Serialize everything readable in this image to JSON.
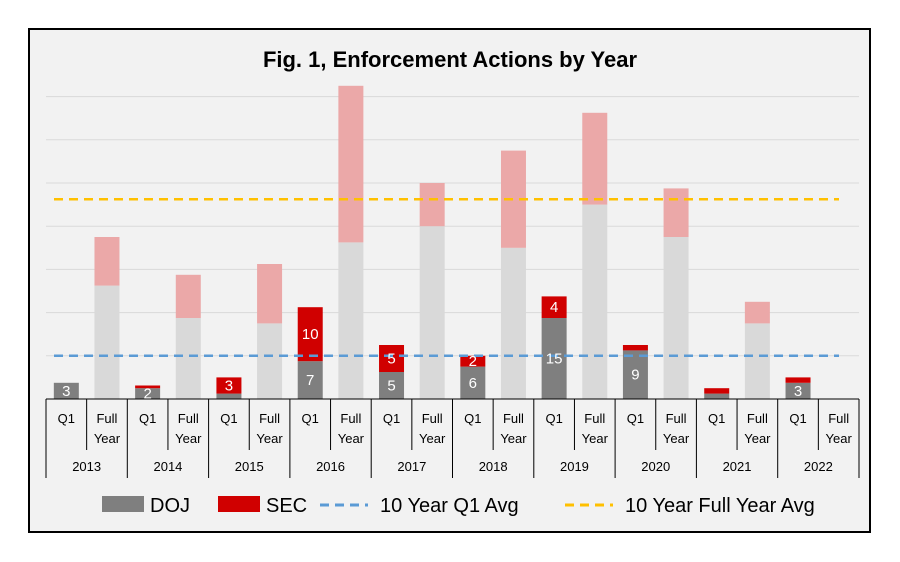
{
  "chart_data": {
    "type": "bar",
    "stacked": true,
    "title": "Fig. 1, Enforcement Actions by Year",
    "years": [
      "2013",
      "2014",
      "2015",
      "2016",
      "2017",
      "2018",
      "2019",
      "2020",
      "2021",
      "2022"
    ],
    "periods": [
      "Q1",
      "Full Year"
    ],
    "categories": [
      "2013 Q1",
      "2013 Full Year",
      "2014 Q1",
      "2014 Full Year",
      "2015 Q1",
      "2015 Full Year",
      "2016 Q1",
      "2016 Full Year",
      "2017 Q1",
      "2017 Full Year",
      "2018 Q1",
      "2018 Full Year",
      "2019 Q1",
      "2019 Full Year",
      "2020 Q1",
      "2020 Full Year",
      "2021 Q1",
      "2021 Full Year",
      "2022 Q1",
      "2022 Full Year"
    ],
    "series": [
      {
        "name": "DOJ",
        "values": [
          3,
          21,
          2,
          15,
          1,
          14,
          7,
          29,
          5,
          32,
          6,
          28,
          15,
          36,
          9,
          30,
          1,
          14,
          3,
          null
        ],
        "labels": [
          "3",
          null,
          "2",
          null,
          null,
          null,
          "7",
          null,
          "5",
          null,
          "6",
          null,
          "15",
          null,
          "9",
          null,
          null,
          null,
          "3",
          null
        ]
      },
      {
        "name": "SEC",
        "values": [
          0,
          9,
          0.5,
          8,
          3,
          11,
          10,
          29,
          5,
          8,
          2,
          18,
          4,
          17,
          1,
          9,
          1,
          4,
          1,
          null
        ],
        "labels": [
          null,
          null,
          null,
          null,
          "3",
          null,
          "10",
          null,
          "5",
          null,
          "2",
          null,
          "4",
          null,
          null,
          null,
          null,
          null,
          null,
          null
        ]
      }
    ],
    "reference_lines": [
      {
        "name": "10 Year Q1 Avg",
        "value": 8,
        "color": "#5b9bd5",
        "style": "dashed"
      },
      {
        "name": "10 Year Full Year Avg",
        "value": 37,
        "color": "#ffc000",
        "style": "dashed"
      }
    ],
    "ylim": [
      0,
      60
    ],
    "grid": true,
    "legend_position": "bottom",
    "colors": {
      "doj": "#7f7f7f",
      "sec": "#d00000",
      "doj_full": "#d9d9d9",
      "sec_full": "#eba8a8"
    }
  }
}
